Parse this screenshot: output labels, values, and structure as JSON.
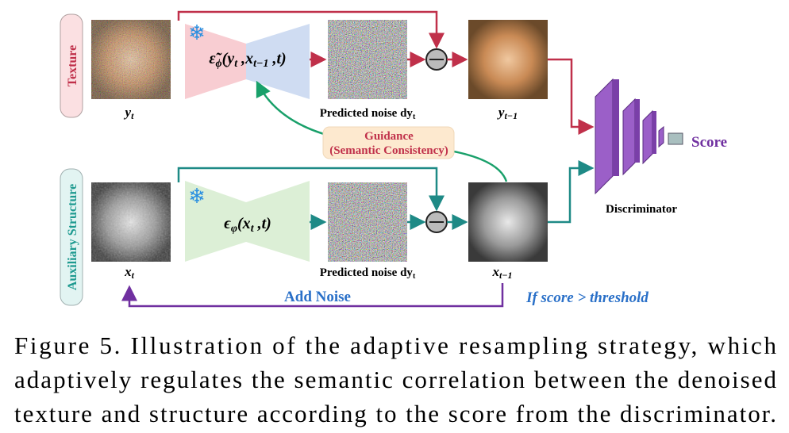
{
  "branches": {
    "texture": "Texture",
    "structure": "Auxiliary Structure"
  },
  "top": {
    "input_label": [
      {
        "text": "y"
      },
      {
        "sub": "t"
      }
    ],
    "formula": [
      {
        "text": "ε̃"
      },
      {
        "sub": "ϕ"
      },
      {
        "text": "(y"
      },
      {
        "sub": "t"
      },
      {
        "text": " ,x"
      },
      {
        "sub": "t−1"
      },
      {
        "text": " ,t)"
      }
    ],
    "noise_label": [
      {
        "text": "Predicted noise dy"
      },
      {
        "sub": "t"
      }
    ],
    "output_label": [
      {
        "text": "y"
      },
      {
        "sub": "t−1"
      }
    ]
  },
  "bottom": {
    "input_label": [
      {
        "text": "x"
      },
      {
        "sub": "t"
      }
    ],
    "formula": [
      {
        "text": "ϵ"
      },
      {
        "sub": "φ"
      },
      {
        "text": "(x"
      },
      {
        "sub": "t"
      },
      {
        "text": " ,t)"
      }
    ],
    "noise_label": [
      {
        "text": "Predicted noise dy"
      },
      {
        "sub": "t"
      }
    ],
    "output_label": [
      {
        "text": "x"
      },
      {
        "sub": "t−1"
      }
    ]
  },
  "guidance": {
    "title": "Guidance",
    "subtitle": "(Semantic Consistency)"
  },
  "discriminator": {
    "label": "Discriminator",
    "output": "Score"
  },
  "loop": {
    "action": "Add Noise",
    "condition": "If score > threshold"
  },
  "caption": [
    "Figure 5.  Illustration of the adaptive resampling strategy, which",
    "adaptively regulates the semantic correlation between the denoised",
    "texture and structure according to the score from the discriminator."
  ]
}
